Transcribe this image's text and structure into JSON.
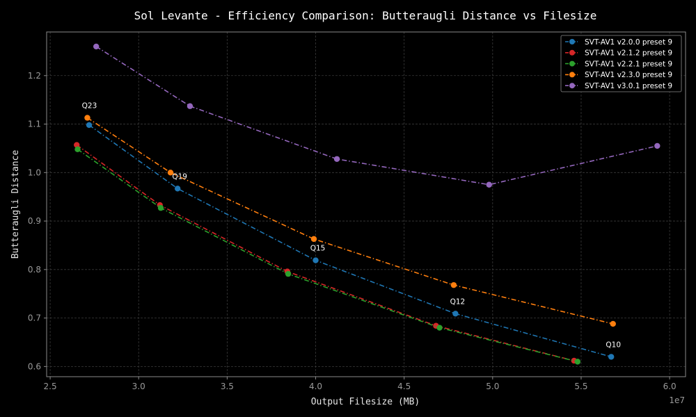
{
  "chart_data": {
    "type": "line",
    "title": "Sol Levante - Efficiency Comparison: Butteraugli Distance vs Filesize",
    "xlabel": "Output Filesize (MB)",
    "ylabel": "Butteraugli Distance",
    "x_offset_label": "1e7",
    "xlim": [
      24800000.0,
      60900000.0
    ],
    "ylim": [
      0.579,
      1.29
    ],
    "xticks": [
      25000000.0,
      30000000.0,
      35000000.0,
      40000000.0,
      45000000.0,
      50000000.0,
      55000000.0,
      60000000.0
    ],
    "xtick_labels": [
      "2.5",
      "3.0",
      "3.5",
      "4.0",
      "4.5",
      "5.0",
      "5.5",
      "6.0"
    ],
    "yticks": [
      0.6,
      0.7,
      0.8,
      0.9,
      1.0,
      1.1,
      1.2
    ],
    "ytick_labels": [
      "0.6",
      "0.7",
      "0.8",
      "0.9",
      "1.0",
      "1.1",
      "1.2"
    ],
    "grid": true,
    "legend_position": "top-right",
    "series": [
      {
        "name": "SVT-AV1 v2.0.0 preset 9",
        "color": "#1f77b4",
        "points": [
          [
            27200000.0,
            1.098
          ],
          [
            32200000.0,
            0.967
          ],
          [
            40000000.0,
            0.819
          ],
          [
            47900000.0,
            0.709
          ],
          [
            56700000.0,
            0.62
          ]
        ]
      },
      {
        "name": "SVT-AV1 v2.1.2 preset 9",
        "color": "#d62728",
        "points": [
          [
            26500000.0,
            1.057
          ],
          [
            31200000.0,
            0.933
          ],
          [
            38400000.0,
            0.796
          ],
          [
            46800000.0,
            0.684
          ],
          [
            54600000.0,
            0.612
          ]
        ]
      },
      {
        "name": "SVT-AV1 v2.2.1 preset 9",
        "color": "#2ca02c",
        "points": [
          [
            26550000.0,
            1.048
          ],
          [
            31250000.0,
            0.927
          ],
          [
            38450000.0,
            0.791
          ],
          [
            47000000.0,
            0.68
          ],
          [
            54800000.0,
            0.61
          ]
        ]
      },
      {
        "name": "SVT-AV1 v2.3.0 preset 9",
        "color": "#ff7f0e",
        "points": [
          [
            27100000.0,
            1.113
          ],
          [
            31800000.0,
            1.0
          ],
          [
            39900000.0,
            0.863
          ],
          [
            47800000.0,
            0.768
          ],
          [
            56800000.0,
            0.688
          ]
        ]
      },
      {
        "name": "SVT-AV1 v3.0.1 preset 9",
        "color": "#9467bd",
        "points": [
          [
            27600000.0,
            1.26
          ],
          [
            32900000.0,
            1.137
          ],
          [
            41200000.0,
            1.028
          ],
          [
            49800000.0,
            0.975
          ],
          [
            59300000.0,
            1.055
          ]
        ]
      }
    ],
    "annotations": [
      {
        "text": "Q23",
        "x": 27100000.0,
        "y": 1.113
      },
      {
        "text": "Q19",
        "x": 32200000.0,
        "y": 0.967
      },
      {
        "text": "Q15",
        "x": 40000000.0,
        "y": 0.819
      },
      {
        "text": "Q12",
        "x": 47900000.0,
        "y": 0.709
      },
      {
        "text": "Q10",
        "x": 56700000.0,
        "y": 0.62
      }
    ]
  }
}
